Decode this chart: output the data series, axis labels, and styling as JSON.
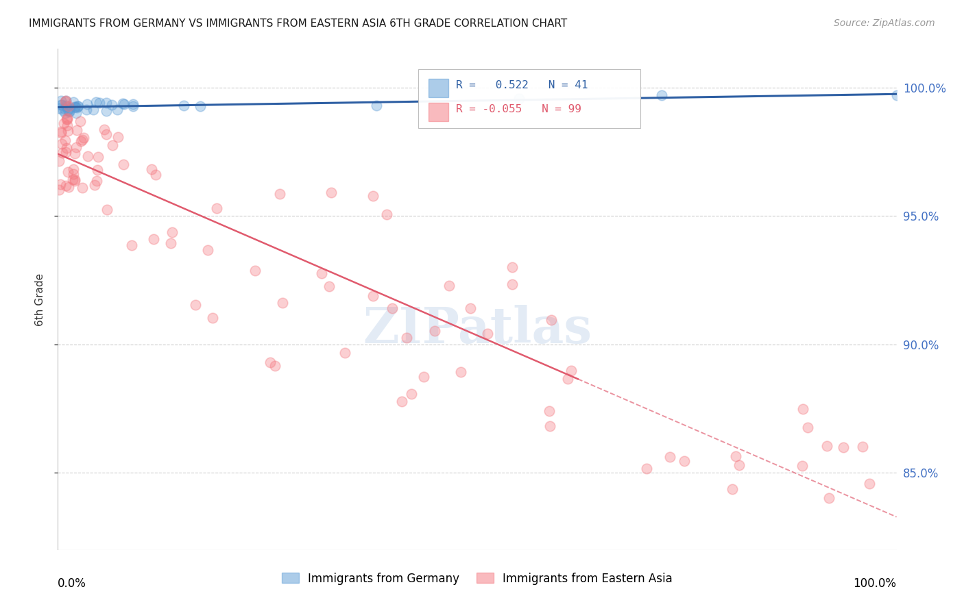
{
  "title": "IMMIGRANTS FROM GERMANY VS IMMIGRANTS FROM EASTERN ASIA 6TH GRADE CORRELATION CHART",
  "source": "Source: ZipAtlas.com",
  "ylabel": "6th Grade",
  "xlim": [
    0.0,
    1.0
  ],
  "ylim": [
    82.0,
    101.5
  ],
  "blue_R": 0.522,
  "blue_N": 41,
  "pink_R": -0.055,
  "pink_N": 99,
  "blue_color": "#5b9bd5",
  "pink_color": "#f4777f",
  "blue_line_color": "#2e5fa3",
  "pink_line_color": "#e05a6d",
  "legend_entry_blue": "Immigrants from Germany",
  "legend_entry_pink": "Immigrants from Eastern Asia",
  "ytick_positions": [
    85.0,
    90.0,
    95.0,
    100.0
  ],
  "ytick_labels": [
    "85.0%",
    "90.0%",
    "95.0%",
    "100.0%"
  ]
}
